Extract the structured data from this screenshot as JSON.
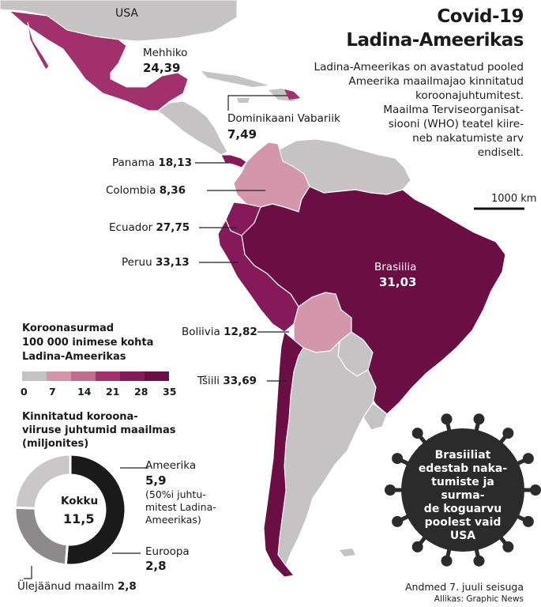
{
  "title": {
    "line1": "Covid-19",
    "line2": "Ladina-Ameerikas"
  },
  "intro": [
    "Ladina-Ameerikas on avastatud pooled",
    "Ameerika maailmajao kinnitatud",
    "koroonajuhtumitest.",
    "Maailma Terviseorganisat-",
    "siooni (WHO) teatel kiire-",
    "neb nakatumiste arv",
    "endiselt."
  ],
  "scale_label": "1000 km",
  "map_labels": {
    "usa": "USA",
    "mexico": {
      "name": "Mehhiko",
      "value": "24,39"
    },
    "dominican": {
      "name": "Dominikaani Vabariik",
      "value": "7,49"
    },
    "panama": {
      "name": "Panama",
      "value": "18,13"
    },
    "colombia": {
      "name": "Colombia",
      "value": "8,36"
    },
    "ecuador": {
      "name": "Ecuador",
      "value": "27,75"
    },
    "peru": {
      "name": "Peruu",
      "value": "33,13"
    },
    "brazil": {
      "name": "Brasiilia",
      "value": "31,03"
    },
    "bolivia": {
      "name": "Boliivia",
      "value": "12,82"
    },
    "chile": {
      "name": "Tšiili",
      "value": "33,69"
    }
  },
  "legend": {
    "title": [
      "Koroonasurmad",
      "100 000 inimese kohta",
      "Ladina-Ameerikas"
    ],
    "ticks": [
      "0",
      "7",
      "14",
      "21",
      "28",
      "35"
    ],
    "colors": [
      "#c5c3c3",
      "#d496ab",
      "#c06d8f",
      "#a1306c",
      "#85195a",
      "#6a0e44"
    ]
  },
  "cases": {
    "title": [
      "Kinnitatud koroona-",
      "viiruse juhtumid maailmas",
      "(miljonites)"
    ],
    "total_label": "Kokku",
    "total_value": "11,5",
    "america_label": "Ameerika",
    "america_value": "5,9",
    "america_note": [
      "(50%i juhtu-",
      "mitest Ladina-",
      "Ameerikas)"
    ],
    "europe_label": "Euroopa",
    "europe_value": "2,8",
    "rest_label": "Ülejäänud maailm",
    "rest_value": "2,8"
  },
  "chart_data": {
    "type": "pie",
    "title": "Kinnitatud koroonaviiruse juhtumid maailmas (miljonites)",
    "categories": [
      "Ameerika",
      "Euroopa",
      "Ülejäänud maailm"
    ],
    "values": [
      5.9,
      2.8,
      2.8
    ],
    "colors": [
      "#1a1a1a",
      "#8c8a8a",
      "#c9c7c7"
    ]
  },
  "virus_text": [
    "Brasiiliat",
    "edestab naka-",
    "tumiste ja surma-",
    "de koguarvu",
    "poolest vaid",
    "USA"
  ],
  "footer": {
    "date": "Andmed 7. juuli seisuga",
    "source": "Allikas: Graphic News"
  }
}
